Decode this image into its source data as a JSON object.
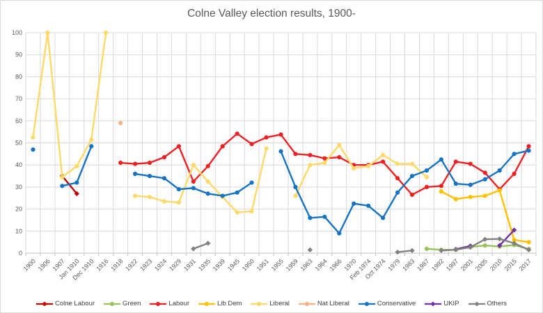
{
  "chart_data": {
    "type": "line",
    "title": "Colne Valley election results, 1900-",
    "xlabel": "",
    "ylabel": "",
    "ylim": [
      0,
      100
    ],
    "ytick_step": 10,
    "grid": true,
    "legend_position": "bottom",
    "style": {
      "text_color": "#595959",
      "grid_color": "#d9d9d9",
      "axis_color": "#bfbfbf",
      "background": "#ffffff"
    },
    "categories": [
      "1900",
      "1906",
      "1907",
      "Jan 1910",
      "Dec 1910",
      "1916",
      "1918",
      "1922",
      "1923",
      "1924",
      "1929",
      "1931",
      "1935",
      "1939",
      "1945",
      "1950",
      "1951",
      "1955",
      "1959",
      "1963",
      "1964",
      "1966",
      "1970",
      "Feb 1974",
      "Oct 1974",
      "1979",
      "1983",
      "1987",
      "1992",
      "1997",
      "2001",
      "2005",
      "2010",
      "2015",
      "2017"
    ],
    "series": [
      {
        "name": "Colne Labour",
        "color": "#C00000",
        "marker": "diamond",
        "values": [
          null,
          null,
          35,
          27,
          null,
          null,
          null,
          null,
          null,
          null,
          null,
          null,
          null,
          null,
          null,
          null,
          null,
          null,
          null,
          null,
          null,
          null,
          null,
          null,
          null,
          null,
          null,
          null,
          null,
          null,
          null,
          null,
          null,
          null,
          null
        ]
      },
      {
        "name": "Green",
        "color": "#97C15C",
        "marker": "circle",
        "values": [
          null,
          null,
          null,
          null,
          null,
          null,
          null,
          null,
          null,
          null,
          null,
          null,
          null,
          null,
          null,
          null,
          null,
          null,
          null,
          null,
          null,
          null,
          null,
          null,
          null,
          null,
          null,
          2,
          1.5,
          1.5,
          2.8,
          3.5,
          3,
          3.7,
          1.9
        ]
      },
      {
        "name": "Labour",
        "color": "#ED2024",
        "marker": "circle",
        "values": [
          null,
          null,
          null,
          null,
          null,
          null,
          41,
          40.5,
          41,
          43.5,
          48.5,
          32.5,
          39.5,
          48.5,
          54.2,
          49.5,
          52.5,
          53.8,
          45,
          44.5,
          43,
          43.5,
          40,
          40,
          41.5,
          34,
          26.5,
          30,
          30.5,
          41.5,
          40.5,
          36.5,
          29,
          36,
          48.5
        ]
      },
      {
        "name": "Lib Dem",
        "color": "#FFC000",
        "marker": "circle",
        "values": [
          null,
          null,
          null,
          null,
          null,
          null,
          null,
          null,
          null,
          null,
          null,
          null,
          null,
          null,
          null,
          null,
          null,
          null,
          null,
          null,
          null,
          null,
          null,
          null,
          null,
          null,
          null,
          null,
          28,
          24.5,
          25.5,
          26,
          28.5,
          6,
          5
        ]
      },
      {
        "name": "Liberal",
        "color": "#FFD966",
        "marker": "circle",
        "values": [
          52.5,
          100,
          34.5,
          39.5,
          51.5,
          100,
          null,
          26,
          25.5,
          23.5,
          23,
          40,
          32.5,
          25.5,
          18.5,
          19,
          47.5,
          null,
          26,
          40,
          41,
          49,
          38.5,
          39.5,
          44.5,
          40.5,
          40.5,
          34.5,
          null,
          null,
          null,
          null,
          null,
          null,
          null
        ]
      },
      {
        "name": "Nat Liberal",
        "color": "#F4B183",
        "marker": "circle",
        "values": [
          null,
          null,
          null,
          null,
          null,
          null,
          59,
          null,
          null,
          null,
          null,
          null,
          null,
          null,
          null,
          null,
          null,
          null,
          null,
          null,
          null,
          null,
          null,
          null,
          null,
          null,
          null,
          null,
          null,
          null,
          null,
          null,
          null,
          null,
          null
        ]
      },
      {
        "name": "Conservative",
        "color": "#1673C1",
        "marker": "circle",
        "values": [
          47,
          null,
          30.5,
          32,
          48.5,
          null,
          null,
          36,
          35,
          34,
          29,
          29.5,
          27,
          26,
          27.5,
          32,
          null,
          46.2,
          30,
          16,
          16.5,
          9,
          22.5,
          21.5,
          16,
          27.5,
          35,
          37.5,
          42.5,
          31.5,
          31,
          33.5,
          37.5,
          45,
          46.5
        ]
      },
      {
        "name": "UKIP",
        "color": "#7030A0",
        "marker": "diamond",
        "values": [
          null,
          null,
          null,
          null,
          null,
          null,
          null,
          null,
          null,
          null,
          null,
          null,
          null,
          null,
          null,
          null,
          null,
          null,
          null,
          null,
          null,
          null,
          null,
          null,
          null,
          null,
          null,
          null,
          null,
          1.8,
          3.3,
          null,
          3.5,
          10.5,
          null
        ]
      },
      {
        "name": "Others",
        "color": "#808080",
        "marker": "diamond",
        "values": [
          null,
          null,
          null,
          null,
          null,
          null,
          null,
          null,
          null,
          null,
          null,
          2,
          4.5,
          null,
          null,
          null,
          null,
          null,
          null,
          1.5,
          null,
          null,
          null,
          null,
          null,
          0.5,
          1.2,
          null,
          1.2,
          1.6,
          2.7,
          6.3,
          6.5,
          4.5,
          1.5
        ]
      }
    ]
  }
}
